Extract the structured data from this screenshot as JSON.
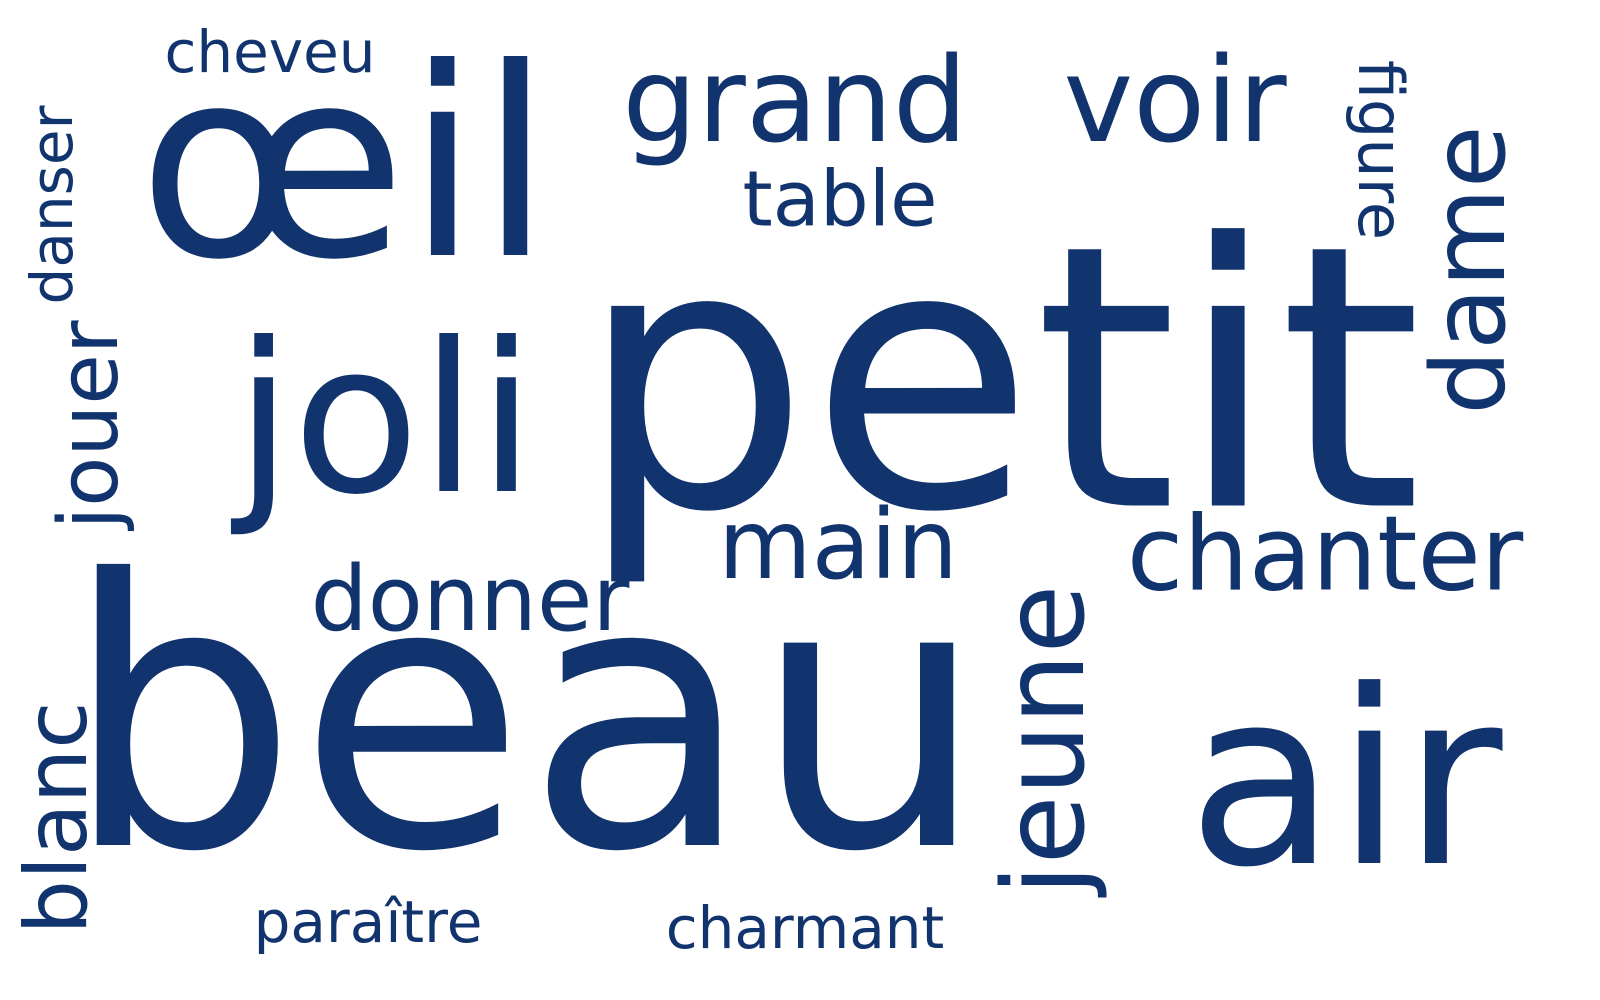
{
  "words": {
    "beau": "beau",
    "petit": "petit",
    "oeil": "œil",
    "air": "air",
    "joli": "joli",
    "grand": "grand",
    "voir": "voir",
    "chanter": "chanter",
    "main": "main",
    "donner": "donner",
    "table": "table",
    "cheveu": "cheveu",
    "paraitre": "paraître",
    "charmant": "charmant",
    "jeune": "jeune",
    "dame": "dame",
    "jouer": "jouer",
    "blanc": "blanc",
    "figure": "figure",
    "danser": "danser"
  },
  "colors": {
    "text": "#12346e",
    "background": "#ffffff"
  }
}
